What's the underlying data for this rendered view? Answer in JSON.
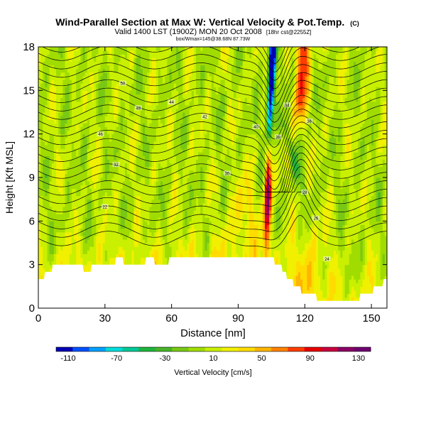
{
  "chart_data": {
    "type": "heatmap",
    "title": "Wind-Parallel Section at Max W: Vertical Velocity & Pot.Temp.",
    "title_mark": "(C)",
    "subtitle_main": "Valid 1400 LST (1900Z) MON 20 Oct 2008",
    "subtitle_note": "[18hr cst@2255Z]",
    "subtitle_line2": "box/Wmax=145@38.68N 87.73W",
    "xlabel": "Distance [nm]",
    "ylabel": "Height [Kft MSL]",
    "xlim": [
      0,
      157
    ],
    "ylim": [
      0,
      18
    ],
    "xticks": [
      0,
      30,
      60,
      90,
      120,
      150
    ],
    "yticks": [
      0,
      3,
      6,
      9,
      12,
      15,
      18
    ],
    "colorbar": {
      "label": "Vertical Velocity [cm/s]",
      "ticks": [
        -110,
        -70,
        -30,
        10,
        50,
        90,
        130
      ],
      "range": [
        -120,
        140
      ],
      "colors": [
        "#0000b4",
        "#0050ff",
        "#00a0ff",
        "#00dcdc",
        "#00c896",
        "#1eb43c",
        "#46b428",
        "#78c814",
        "#a0dc00",
        "#c8f000",
        "#f0f000",
        "#ffdc00",
        "#ffb400",
        "#ff8200",
        "#ff3c00",
        "#e60000",
        "#c8003c",
        "#8c0064",
        "#6e006e"
      ]
    },
    "features": {
      "downdraft_core": {
        "x": 105,
        "min_value": -110
      },
      "updraft_core": {
        "x": 103,
        "max_value": 130
      },
      "upper_updraft": {
        "x": 119,
        "value": 80
      }
    },
    "terrain": [
      [
        0,
        1.8
      ],
      [
        4,
        2.5
      ],
      [
        8,
        2.9
      ],
      [
        12,
        3.2
      ],
      [
        18,
        2.9
      ],
      [
        22,
        2.6
      ],
      [
        26,
        2.9
      ],
      [
        30,
        3.0
      ],
      [
        36,
        3.3
      ],
      [
        40,
        3.2
      ],
      [
        44,
        3.1
      ],
      [
        50,
        3.3
      ],
      [
        54,
        3.2
      ],
      [
        58,
        3.2
      ],
      [
        64,
        3.5
      ],
      [
        70,
        3.5
      ],
      [
        80,
        3.5
      ],
      [
        90,
        3.5
      ],
      [
        100,
        3.5
      ],
      [
        104,
        3.4
      ],
      [
        108,
        3.1
      ],
      [
        112,
        2.2
      ],
      [
        116,
        1.5
      ],
      [
        120,
        1.0
      ],
      [
        126,
        0.7
      ],
      [
        132,
        0.4
      ],
      [
        140,
        0.5
      ],
      [
        148,
        0.9
      ],
      [
        152,
        1.4
      ],
      [
        157,
        1.9
      ]
    ],
    "isentrope_labels": [
      "50",
      "48",
      "46",
      "44",
      "42",
      "40",
      "38",
      "36",
      "34",
      "32",
      "30",
      "28",
      "26",
      "24",
      "22"
    ]
  }
}
